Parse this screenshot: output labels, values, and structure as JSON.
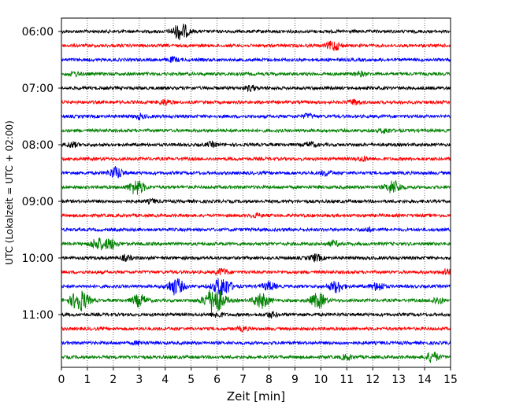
{
  "chart_data": {
    "type": "line",
    "title": "",
    "xlabel": "Zeit  [min]",
    "ylabel": "UTC (Lokalzeit = UTC + 02:00)",
    "xlim": [
      0,
      15
    ],
    "x_ticks": [
      0,
      1,
      2,
      3,
      4,
      5,
      6,
      7,
      8,
      9,
      10,
      11,
      12,
      13,
      14,
      15
    ],
    "y_tick_labels": [
      "06:00",
      "07:00",
      "08:00",
      "09:00",
      "10:00",
      "11:00"
    ],
    "grid": "vertical dotted",
    "trace_interval_min": 15,
    "color_cycle": [
      "#000000",
      "#ff0000",
      "#0000ff",
      "#008000"
    ],
    "traces": [
      {
        "start": "06:00",
        "color": "#000000",
        "events": [
          {
            "t": 4.6,
            "amp": 10
          }
        ]
      },
      {
        "start": "06:15",
        "color": "#ff0000",
        "events": [
          {
            "t": 10.5,
            "amp": 6
          }
        ]
      },
      {
        "start": "06:30",
        "color": "#0000ff",
        "events": [
          {
            "t": 4.3,
            "amp": 2.5
          }
        ]
      },
      {
        "start": "06:45",
        "color": "#008000",
        "events": [
          {
            "t": 0.5,
            "amp": 2.5
          },
          {
            "t": 11.5,
            "amp": 2.5
          }
        ]
      },
      {
        "start": "07:00",
        "color": "#000000",
        "events": [
          {
            "t": 7.3,
            "amp": 3
          }
        ]
      },
      {
        "start": "07:15",
        "color": "#ff0000",
        "events": [
          {
            "t": 4.0,
            "amp": 3
          },
          {
            "t": 11.3,
            "amp": 3
          }
        ]
      },
      {
        "start": "07:30",
        "color": "#0000ff",
        "events": [
          {
            "t": 3.0,
            "amp": 2.5
          },
          {
            "t": 9.5,
            "amp": 2.5
          }
        ]
      },
      {
        "start": "07:45",
        "color": "#008000",
        "events": [
          {
            "t": 12.5,
            "amp": 2.5
          }
        ]
      },
      {
        "start": "08:00",
        "color": "#000000",
        "events": [
          {
            "t": 0.4,
            "amp": 3
          },
          {
            "t": 5.8,
            "amp": 2.5
          },
          {
            "t": 9.6,
            "amp": 3
          }
        ]
      },
      {
        "start": "08:15",
        "color": "#ff0000",
        "events": [
          {
            "t": 11.6,
            "amp": 2.5
          }
        ]
      },
      {
        "start": "08:30",
        "color": "#0000ff",
        "events": [
          {
            "t": 2.1,
            "amp": 7
          },
          {
            "t": 10.2,
            "amp": 3
          }
        ]
      },
      {
        "start": "08:45",
        "color": "#008000",
        "events": [
          {
            "t": 2.9,
            "amp": 9
          },
          {
            "t": 12.8,
            "amp": 8
          }
        ]
      },
      {
        "start": "09:00",
        "color": "#000000",
        "events": [
          {
            "t": 3.5,
            "amp": 2
          }
        ]
      },
      {
        "start": "09:15",
        "color": "#ff0000",
        "events": [
          {
            "t": 7.5,
            "amp": 2
          }
        ]
      },
      {
        "start": "09:30",
        "color": "#0000ff",
        "events": [
          {
            "t": 11.8,
            "amp": 2
          }
        ]
      },
      {
        "start": "09:45",
        "color": "#008000",
        "events": [
          {
            "t": 1.4,
            "amp": 7
          },
          {
            "t": 1.9,
            "amp": 6
          },
          {
            "t": 10.5,
            "amp": 3
          }
        ]
      },
      {
        "start": "10:00",
        "color": "#000000",
        "events": [
          {
            "t": 2.5,
            "amp": 3
          },
          {
            "t": 9.8,
            "amp": 4
          }
        ]
      },
      {
        "start": "10:15",
        "color": "#ff0000",
        "events": [
          {
            "t": 6.2,
            "amp": 4
          },
          {
            "t": 14.9,
            "amp": 4
          }
        ]
      },
      {
        "start": "10:30",
        "color": "#0000ff",
        "events": [
          {
            "t": 4.4,
            "amp": 10
          },
          {
            "t": 6.2,
            "amp": 12
          },
          {
            "t": 8.0,
            "amp": 5
          },
          {
            "t": 10.6,
            "amp": 7
          },
          {
            "t": 12.2,
            "amp": 5
          }
        ]
      },
      {
        "start": "10:45",
        "color": "#008000",
        "events": [
          {
            "t": 0.7,
            "amp": 13
          },
          {
            "t": 3.0,
            "amp": 7
          },
          {
            "t": 5.9,
            "amp": 16
          },
          {
            "t": 7.7,
            "amp": 9
          },
          {
            "t": 9.9,
            "amp": 9
          },
          {
            "t": 14.5,
            "amp": 4
          }
        ]
      },
      {
        "start": "11:00",
        "color": "#000000",
        "events": [
          {
            "t": 6.0,
            "amp": 3
          },
          {
            "t": 8.1,
            "amp": 3
          }
        ]
      },
      {
        "start": "11:15",
        "color": "#ff0000",
        "events": [
          {
            "t": 7.0,
            "amp": 2
          }
        ]
      },
      {
        "start": "11:30",
        "color": "#0000ff",
        "events": [
          {
            "t": 3.0,
            "amp": 2
          }
        ]
      },
      {
        "start": "11:45",
        "color": "#008000",
        "events": [
          {
            "t": 11.0,
            "amp": 3
          },
          {
            "t": 14.3,
            "amp": 6
          }
        ]
      }
    ]
  }
}
